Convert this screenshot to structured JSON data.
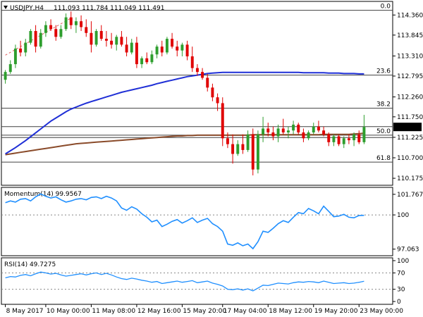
{
  "header": {
    "symbol_title": "USDJPY,H4",
    "ohlc": "111.093 111.784 111.049 111.491",
    "arrow_icon": "triangle-down-icon"
  },
  "colors": {
    "bull": "#2e9e2e",
    "bear": "#e00000",
    "sma_fast": "#1f2fd6",
    "sma_slow": "#8a4b2a",
    "indicator": "#1f8fff",
    "trend": "#e06060",
    "level": "#404040",
    "price_tag_bg": "#000000"
  },
  "chart_data": [
    {
      "type": "candlestick",
      "panel": "price",
      "title": "USDJPY,H4",
      "ylim": [
        110.05,
        114.6
      ],
      "y_ticks": [
        "114.360",
        "113.845",
        "113.310",
        "112.795",
        "112.260",
        "111.750",
        "111.225",
        "110.700",
        "110.175"
      ],
      "current_price": "111.491",
      "fib_levels": [
        {
          "label": "0.0",
          "value": 114.48
        },
        {
          "label": "23.6",
          "value": 112.82
        },
        {
          "label": "38.2",
          "value": 111.97
        },
        {
          "label": "50.0",
          "value": 111.28
        },
        {
          "label": "61.8",
          "value": 110.59
        }
      ],
      "horizontal_levels": [
        111.5,
        111.22
      ],
      "trendline": {
        "from": [
          0,
          113.33
        ],
        "to": [
          13,
          114.28
        ]
      },
      "candles": [
        {
          "o": 112.7,
          "h": 112.95,
          "l": 112.6,
          "c": 112.9
        },
        {
          "o": 112.9,
          "h": 113.2,
          "l": 112.85,
          "c": 113.1
        },
        {
          "o": 113.1,
          "h": 113.6,
          "l": 113.0,
          "c": 113.5
        },
        {
          "o": 113.5,
          "h": 113.7,
          "l": 113.3,
          "c": 113.4
        },
        {
          "o": 113.4,
          "h": 113.75,
          "l": 113.3,
          "c": 113.65
        },
        {
          "o": 113.65,
          "h": 114.0,
          "l": 113.6,
          "c": 113.95
        },
        {
          "o": 113.95,
          "h": 114.1,
          "l": 113.4,
          "c": 113.55
        },
        {
          "o": 113.55,
          "h": 114.0,
          "l": 113.5,
          "c": 113.9
        },
        {
          "o": 113.9,
          "h": 114.2,
          "l": 113.8,
          "c": 114.1
        },
        {
          "o": 114.1,
          "h": 114.25,
          "l": 113.95,
          "c": 114.0
        },
        {
          "o": 114.0,
          "h": 114.1,
          "l": 113.7,
          "c": 113.8
        },
        {
          "o": 113.8,
          "h": 114.1,
          "l": 113.75,
          "c": 114.0
        },
        {
          "o": 114.0,
          "h": 114.4,
          "l": 113.95,
          "c": 114.3
        },
        {
          "o": 114.3,
          "h": 114.45,
          "l": 114.0,
          "c": 114.1
        },
        {
          "o": 114.1,
          "h": 114.3,
          "l": 113.9,
          "c": 114.2
        },
        {
          "o": 114.2,
          "h": 114.35,
          "l": 113.95,
          "c": 114.05
        },
        {
          "o": 114.05,
          "h": 114.25,
          "l": 113.8,
          "c": 113.9
        },
        {
          "o": 113.9,
          "h": 114.2,
          "l": 113.4,
          "c": 113.6
        },
        {
          "o": 113.6,
          "h": 114.0,
          "l": 113.55,
          "c": 113.95
        },
        {
          "o": 113.95,
          "h": 114.1,
          "l": 113.7,
          "c": 113.75
        },
        {
          "o": 113.75,
          "h": 113.95,
          "l": 113.55,
          "c": 113.7
        },
        {
          "o": 113.7,
          "h": 113.9,
          "l": 113.5,
          "c": 113.6
        },
        {
          "o": 113.6,
          "h": 113.85,
          "l": 113.45,
          "c": 113.8
        },
        {
          "o": 113.8,
          "h": 113.95,
          "l": 113.55,
          "c": 113.6
        },
        {
          "o": 113.6,
          "h": 113.8,
          "l": 113.3,
          "c": 113.4
        },
        {
          "o": 113.4,
          "h": 113.75,
          "l": 113.35,
          "c": 113.65
        },
        {
          "o": 113.65,
          "h": 113.8,
          "l": 113.0,
          "c": 113.1
        },
        {
          "o": 113.1,
          "h": 113.3,
          "l": 113.0,
          "c": 113.25
        },
        {
          "o": 113.25,
          "h": 113.4,
          "l": 113.1,
          "c": 113.15
        },
        {
          "o": 113.15,
          "h": 113.45,
          "l": 113.1,
          "c": 113.35
        },
        {
          "o": 113.35,
          "h": 113.6,
          "l": 113.25,
          "c": 113.55
        },
        {
          "o": 113.55,
          "h": 113.7,
          "l": 113.3,
          "c": 113.4
        },
        {
          "o": 113.4,
          "h": 113.8,
          "l": 113.35,
          "c": 113.75
        },
        {
          "o": 113.75,
          "h": 113.9,
          "l": 113.5,
          "c": 113.55
        },
        {
          "o": 113.55,
          "h": 113.7,
          "l": 113.3,
          "c": 113.45
        },
        {
          "o": 113.45,
          "h": 113.65,
          "l": 113.3,
          "c": 113.6
        },
        {
          "o": 113.6,
          "h": 113.7,
          "l": 113.2,
          "c": 113.3
        },
        {
          "o": 113.3,
          "h": 113.55,
          "l": 112.9,
          "c": 113.0
        },
        {
          "o": 113.0,
          "h": 113.1,
          "l": 112.8,
          "c": 112.9
        },
        {
          "o": 112.9,
          "h": 113.0,
          "l": 112.7,
          "c": 112.75
        },
        {
          "o": 112.75,
          "h": 112.85,
          "l": 112.4,
          "c": 112.5
        },
        {
          "o": 112.5,
          "h": 112.6,
          "l": 112.15,
          "c": 112.25
        },
        {
          "o": 112.25,
          "h": 112.35,
          "l": 111.9,
          "c": 112.1
        },
        {
          "o": 112.1,
          "h": 112.25,
          "l": 111.0,
          "c": 111.2
        },
        {
          "o": 111.2,
          "h": 111.35,
          "l": 110.95,
          "c": 111.05
        },
        {
          "o": 111.05,
          "h": 111.3,
          "l": 110.55,
          "c": 110.8
        },
        {
          "o": 110.8,
          "h": 111.15,
          "l": 110.75,
          "c": 111.05
        },
        {
          "o": 111.05,
          "h": 111.3,
          "l": 110.8,
          "c": 110.9
        },
        {
          "o": 110.9,
          "h": 111.4,
          "l": 110.85,
          "c": 111.3
        },
        {
          "o": 111.3,
          "h": 111.45,
          "l": 110.25,
          "c": 110.4
        },
        {
          "o": 110.4,
          "h": 111.4,
          "l": 110.3,
          "c": 111.3
        },
        {
          "o": 111.3,
          "h": 111.75,
          "l": 111.1,
          "c": 111.45
        },
        {
          "o": 111.45,
          "h": 111.6,
          "l": 111.25,
          "c": 111.35
        },
        {
          "o": 111.35,
          "h": 111.5,
          "l": 111.15,
          "c": 111.25
        },
        {
          "o": 111.25,
          "h": 111.55,
          "l": 111.1,
          "c": 111.45
        },
        {
          "o": 111.45,
          "h": 111.7,
          "l": 111.3,
          "c": 111.35
        },
        {
          "o": 111.35,
          "h": 111.5,
          "l": 111.2,
          "c": 111.4
        },
        {
          "o": 111.4,
          "h": 111.65,
          "l": 111.3,
          "c": 111.55
        },
        {
          "o": 111.55,
          "h": 111.6,
          "l": 111.3,
          "c": 111.35
        },
        {
          "o": 111.35,
          "h": 111.45,
          "l": 111.1,
          "c": 111.2
        },
        {
          "o": 111.2,
          "h": 111.4,
          "l": 111.15,
          "c": 111.35
        },
        {
          "o": 111.35,
          "h": 111.6,
          "l": 111.3,
          "c": 111.5
        },
        {
          "o": 111.5,
          "h": 111.65,
          "l": 111.35,
          "c": 111.4
        },
        {
          "o": 111.4,
          "h": 111.5,
          "l": 111.25,
          "c": 111.3
        },
        {
          "o": 111.3,
          "h": 111.35,
          "l": 111.0,
          "c": 111.1
        },
        {
          "o": 111.1,
          "h": 111.3,
          "l": 111.0,
          "c": 111.25
        },
        {
          "o": 111.25,
          "h": 111.3,
          "l": 111.0,
          "c": 111.05
        },
        {
          "o": 111.05,
          "h": 111.25,
          "l": 110.95,
          "c": 111.2
        },
        {
          "o": 111.2,
          "h": 111.3,
          "l": 111.05,
          "c": 111.15
        },
        {
          "o": 111.15,
          "h": 111.35,
          "l": 111.0,
          "c": 111.3
        },
        {
          "o": 111.3,
          "h": 111.4,
          "l": 111.05,
          "c": 111.1
        },
        {
          "o": 111.1,
          "h": 111.8,
          "l": 111.05,
          "c": 111.49
        }
      ],
      "sma_fast": [
        110.8,
        110.88,
        110.96,
        111.05,
        111.14,
        111.24,
        111.34,
        111.44,
        111.54,
        111.64,
        111.72,
        111.8,
        111.88,
        111.95,
        112.0,
        112.05,
        112.1,
        112.14,
        112.18,
        112.22,
        112.26,
        112.3,
        112.34,
        112.38,
        112.41,
        112.44,
        112.47,
        112.5,
        112.53,
        112.56,
        112.6,
        112.63,
        112.66,
        112.69,
        112.72,
        112.75,
        112.78,
        112.8,
        112.82,
        112.84,
        112.86,
        112.87,
        112.88,
        112.89,
        112.89,
        112.89,
        112.89,
        112.89,
        112.89,
        112.89,
        112.89,
        112.89,
        112.89,
        112.89,
        112.89,
        112.89,
        112.89,
        112.89,
        112.89,
        112.88,
        112.88,
        112.88,
        112.88,
        112.88,
        112.87,
        112.87,
        112.87,
        112.86,
        112.86,
        112.86,
        112.85,
        112.85
      ],
      "sma_slow": [
        110.78,
        110.8,
        110.82,
        110.84,
        110.86,
        110.88,
        110.9,
        110.92,
        110.94,
        110.96,
        110.98,
        111.0,
        111.02,
        111.04,
        111.06,
        111.07,
        111.08,
        111.09,
        111.1,
        111.11,
        111.12,
        111.13,
        111.14,
        111.15,
        111.16,
        111.17,
        111.18,
        111.19,
        111.2,
        111.21,
        111.22,
        111.23,
        111.24,
        111.25,
        111.26,
        111.26,
        111.27,
        111.27,
        111.28,
        111.28,
        111.28,
        111.28,
        111.28,
        111.28,
        111.28,
        111.28,
        111.28,
        111.28,
        111.28,
        111.29,
        111.29,
        111.29,
        111.29,
        111.29,
        111.29,
        111.29,
        111.29,
        111.29,
        111.29,
        111.29,
        111.29,
        111.29,
        111.29,
        111.3,
        111.3,
        111.3,
        111.3,
        111.3,
        111.3,
        111.31,
        111.32,
        111.33
      ]
    },
    {
      "type": "line",
      "panel": "momentum",
      "title": "Momentum(14) 99.9567",
      "ylim": [
        96.8,
        102.0
      ],
      "y_ticks": [
        "101.7673",
        "100",
        "97.063"
      ],
      "reference_level": 100,
      "values": [
        101.05,
        101.2,
        101.1,
        101.35,
        101.4,
        101.2,
        101.55,
        101.8,
        101.6,
        101.45,
        101.55,
        101.3,
        101.1,
        101.2,
        101.35,
        101.4,
        101.3,
        101.5,
        101.55,
        101.4,
        101.6,
        101.45,
        101.2,
        100.6,
        100.4,
        100.7,
        100.5,
        100.1,
        99.8,
        99.4,
        99.55,
        99.0,
        99.2,
        99.45,
        99.6,
        99.3,
        99.5,
        99.75,
        99.35,
        99.55,
        99.7,
        99.25,
        99.0,
        98.6,
        97.5,
        97.4,
        97.6,
        97.35,
        97.5,
        97.1,
        97.7,
        98.6,
        98.5,
        98.85,
        99.25,
        99.5,
        99.35,
        99.8,
        100.2,
        100.1,
        100.55,
        100.35,
        100.1,
        100.75,
        100.3,
        99.85,
        99.9,
        100.05,
        99.8,
        99.75,
        99.95,
        99.96
      ]
    },
    {
      "type": "line",
      "panel": "rsi",
      "title": "RSI(14) 49.7275",
      "ylim": [
        0,
        100
      ],
      "y_ticks": [
        "100",
        "70",
        "30",
        "0"
      ],
      "reference_levels": [
        70,
        30
      ],
      "values": [
        58,
        61,
        60,
        64,
        66,
        63,
        68,
        72,
        70,
        67,
        69,
        65,
        62,
        64,
        66,
        68,
        65,
        68,
        70,
        66,
        69,
        65,
        60,
        56,
        54,
        57,
        55,
        52,
        50,
        47,
        49,
        44,
        46,
        48,
        50,
        47,
        49,
        51,
        46,
        48,
        50,
        45,
        42,
        38,
        30,
        29,
        31,
        28,
        31,
        26,
        33,
        40,
        39,
        42,
        45,
        44,
        43,
        46,
        48,
        47,
        49,
        48,
        46,
        50,
        47,
        44,
        45,
        46,
        44,
        45,
        47,
        49.73
      ]
    },
    {
      "type": "axis",
      "panel": "time",
      "x_ticks": [
        "8 May 2017",
        "10 May 00:00",
        "11 May 08:00",
        "12 May 16:00",
        "15 May 20:00",
        "17 May 04:00",
        "18 May 12:00",
        "19 May 20:00",
        "23 May 00:00"
      ]
    }
  ]
}
